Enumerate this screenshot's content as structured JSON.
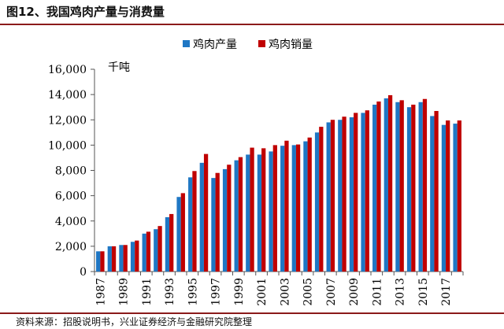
{
  "header": {
    "title": "图12、我国鸡肉产量与消费量"
  },
  "footer": {
    "source": "资料来源：招股说明书，兴业证券经济与金融研究院整理"
  },
  "chart_data": {
    "type": "bar",
    "title": "图12、我国鸡肉产量与消费量",
    "ylabel": "千吨",
    "xlabel": "",
    "ylim": [
      0,
      16000
    ],
    "yticks": [
      0,
      2000,
      4000,
      6000,
      8000,
      10000,
      12000,
      14000,
      16000
    ],
    "ytick_labels": [
      "0",
      "2,000",
      "4,000",
      "6,000",
      "8,000",
      "10,000",
      "12,000",
      "14,000",
      "16,000"
    ],
    "categories": [
      "1987",
      "1988",
      "1989",
      "1990",
      "1991",
      "1992",
      "1993",
      "1994",
      "1995",
      "1996",
      "1997",
      "1998",
      "1999",
      "2000",
      "2001",
      "2002",
      "2003",
      "2004",
      "2005",
      "2006",
      "2007",
      "2008",
      "2009",
      "2010",
      "2011",
      "2012",
      "2013",
      "2014",
      "2015",
      "2016",
      "2017",
      "2018"
    ],
    "xtick_labels": [
      "1987",
      "1989",
      "1991",
      "1993",
      "1995",
      "1997",
      "1999",
      "2001",
      "2003",
      "2005",
      "2007",
      "2009",
      "2011",
      "2013",
      "2015",
      "2017"
    ],
    "legend_position": "top-center",
    "grid": false,
    "series": [
      {
        "name": "鸡肉产量",
        "color": "#1f77c4",
        "values": [
          1600,
          2000,
          2100,
          2350,
          3000,
          3350,
          4300,
          5900,
          7450,
          8600,
          7400,
          8100,
          8800,
          9250,
          9250,
          9500,
          9950,
          10000,
          10300,
          11000,
          11800,
          12000,
          12200,
          12550,
          13200,
          13700,
          13400,
          13000,
          13400,
          12300,
          11600,
          11700
        ]
      },
      {
        "name": "鸡肉销量",
        "color": "#c00000",
        "values": [
          1600,
          2000,
          2100,
          2450,
          3150,
          3600,
          4550,
          6200,
          7950,
          9300,
          7800,
          8450,
          9050,
          9800,
          9750,
          10000,
          10350,
          10050,
          10600,
          11450,
          12000,
          12250,
          12550,
          12750,
          13450,
          13950,
          13550,
          13200,
          13650,
          12700,
          11950,
          11950
        ]
      }
    ]
  }
}
